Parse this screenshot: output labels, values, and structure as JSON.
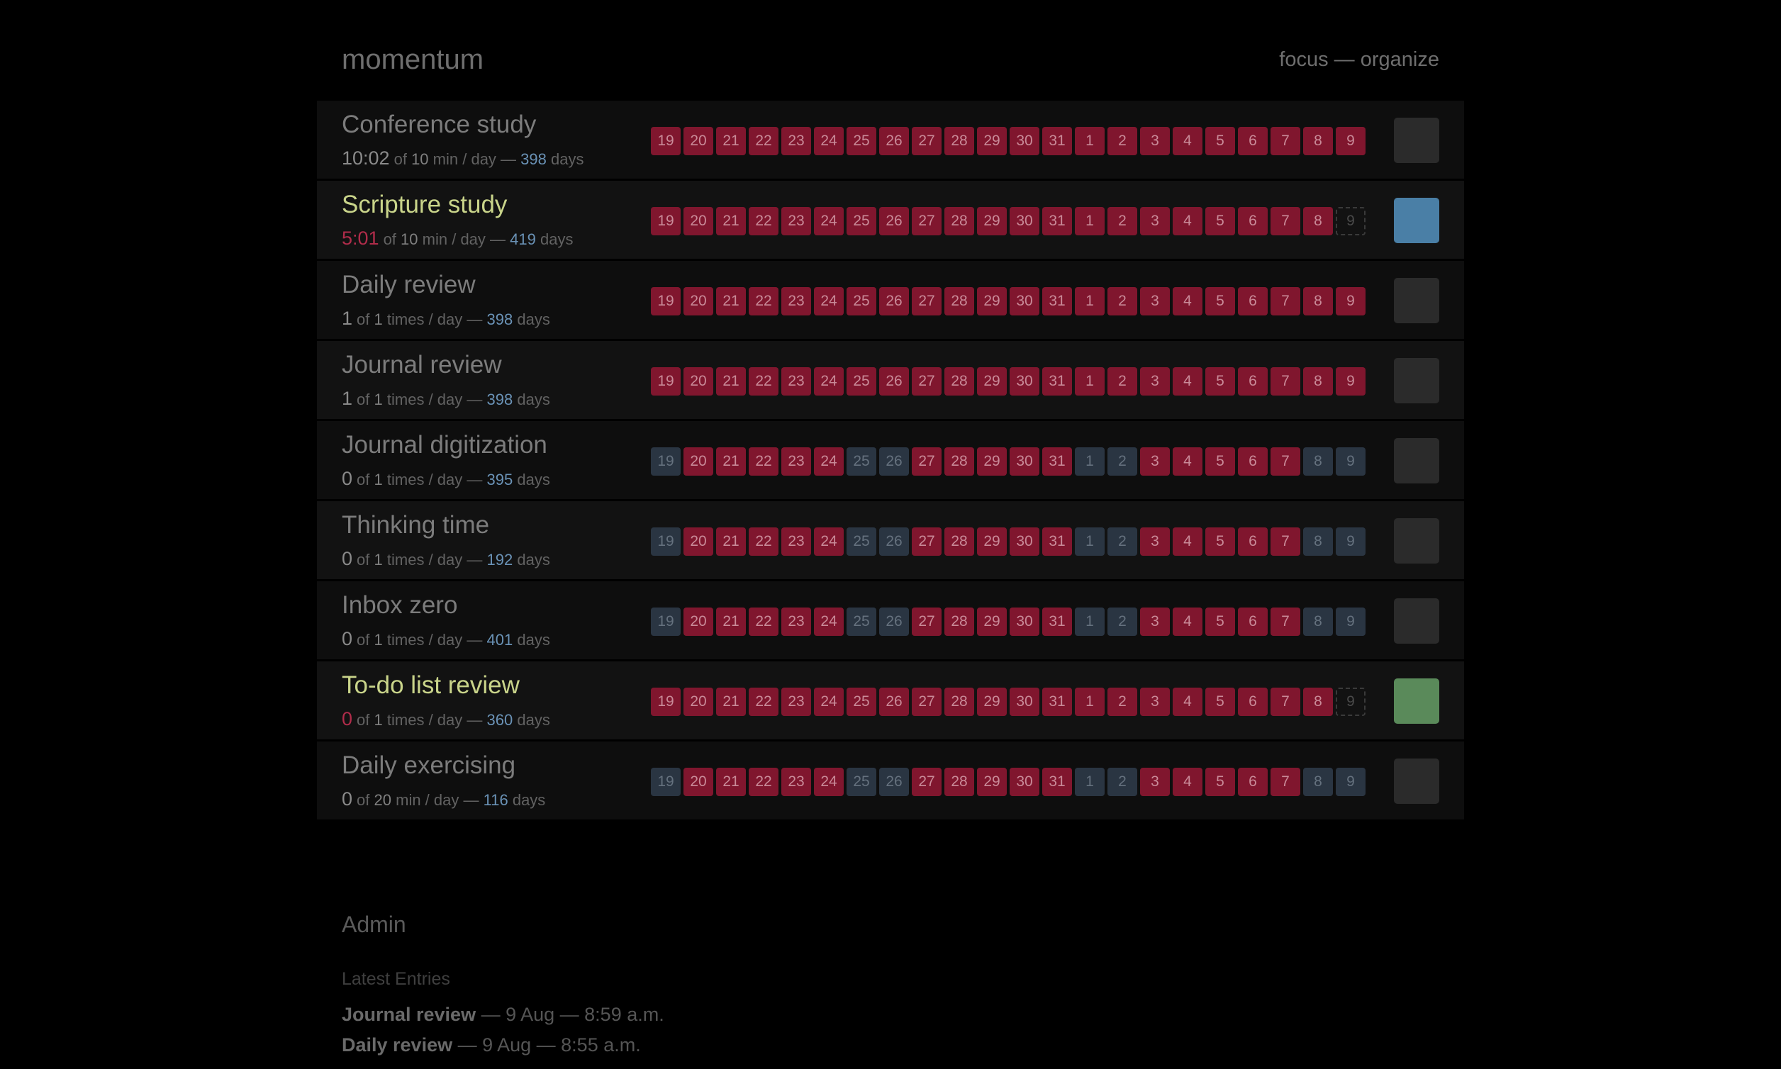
{
  "header": {
    "brand": "momentum",
    "nav": {
      "focus": "focus",
      "sep": " — ",
      "organize": "organize"
    }
  },
  "day_labels": [
    "19",
    "20",
    "21",
    "22",
    "23",
    "24",
    "25",
    "26",
    "27",
    "28",
    "29",
    "30",
    "31",
    "1",
    "2",
    "3",
    "4",
    "5",
    "6",
    "7",
    "8",
    "9"
  ],
  "habits": [
    {
      "name": "Conference study",
      "highlight": false,
      "value": "10:02",
      "value_red": false,
      "of": "of",
      "target": "10",
      "unit": "min / day —",
      "days": "398",
      "days_label": "days",
      "pattern": "rrrrrrrrrrrrrrrrrrrrrr",
      "square_color": "#2b2b2b"
    },
    {
      "name": "Scripture study",
      "highlight": true,
      "value": "5:01",
      "value_red": true,
      "of": "of",
      "target": "10",
      "unit": "min / day —",
      "days": "419",
      "days_label": "days",
      "pattern": "rrrrrrrrrrrrrrrrrrrrre",
      "square_color": "#4a7fa6"
    },
    {
      "name": "Daily review",
      "highlight": false,
      "value": "1",
      "value_red": false,
      "of": "of",
      "target": "1",
      "unit": "times / day —",
      "days": "398",
      "days_label": "days",
      "pattern": "rrrrrrrrrrrrrrrrrrrrrr",
      "square_color": "#2b2b2b"
    },
    {
      "name": "Journal review",
      "highlight": false,
      "value": "1",
      "value_red": false,
      "of": "of",
      "target": "1",
      "unit": "times / day —",
      "days": "398",
      "days_label": "days",
      "pattern": "rrrrrrrrrrrrrrrrrrrrrr",
      "square_color": "#2b2b2b"
    },
    {
      "name": "Journal digitization",
      "highlight": false,
      "value": "0",
      "value_red": false,
      "of": "of",
      "target": "1",
      "unit": "times / day —",
      "days": "395",
      "days_label": "days",
      "pattern": "brrrrrbbrrrrrbbrrrrrbb",
      "square_color": "#2b2b2b"
    },
    {
      "name": "Thinking time",
      "highlight": false,
      "value": "0",
      "value_red": false,
      "of": "of",
      "target": "1",
      "unit": "times / day —",
      "days": "192",
      "days_label": "days",
      "pattern": "brrrrrbbrrrrrbbrrrrrbb",
      "square_color": "#2b2b2b"
    },
    {
      "name": "Inbox zero",
      "highlight": false,
      "value": "0",
      "value_red": false,
      "of": "of",
      "target": "1",
      "unit": "times / day —",
      "days": "401",
      "days_label": "days",
      "pattern": "brrrrrbbrrrrrbbrrrrrbb",
      "square_color": "#2b2b2b"
    },
    {
      "name": "To-do list review",
      "highlight": true,
      "value": "0",
      "value_red": true,
      "of": "of",
      "target": "1",
      "unit": "times / day —",
      "days": "360",
      "days_label": "days",
      "pattern": "rrrrrrrrrrrrrrrrrrrrre",
      "square_color": "#5a8a5a"
    },
    {
      "name": "Daily exercising",
      "highlight": false,
      "value": "0",
      "value_red": false,
      "of": "of",
      "target": "20",
      "unit": "min / day —",
      "days": "116",
      "days_label": "days",
      "pattern": "brrrrrbbrrrrrbbrrrrrbb",
      "square_color": "#2b2b2b"
    }
  ],
  "colors": {
    "missed": "#80162e",
    "off_day": "#2a3542",
    "today_empty": "#3a3a3a"
  },
  "admin": {
    "title": "Admin",
    "latest_title": "Latest Entries",
    "entries": [
      {
        "habit": "Journal review",
        "rest": " — 9 Aug — 8:59 a.m."
      },
      {
        "habit": "Daily review",
        "rest": " — 9 Aug — 8:55 a.m."
      }
    ]
  }
}
